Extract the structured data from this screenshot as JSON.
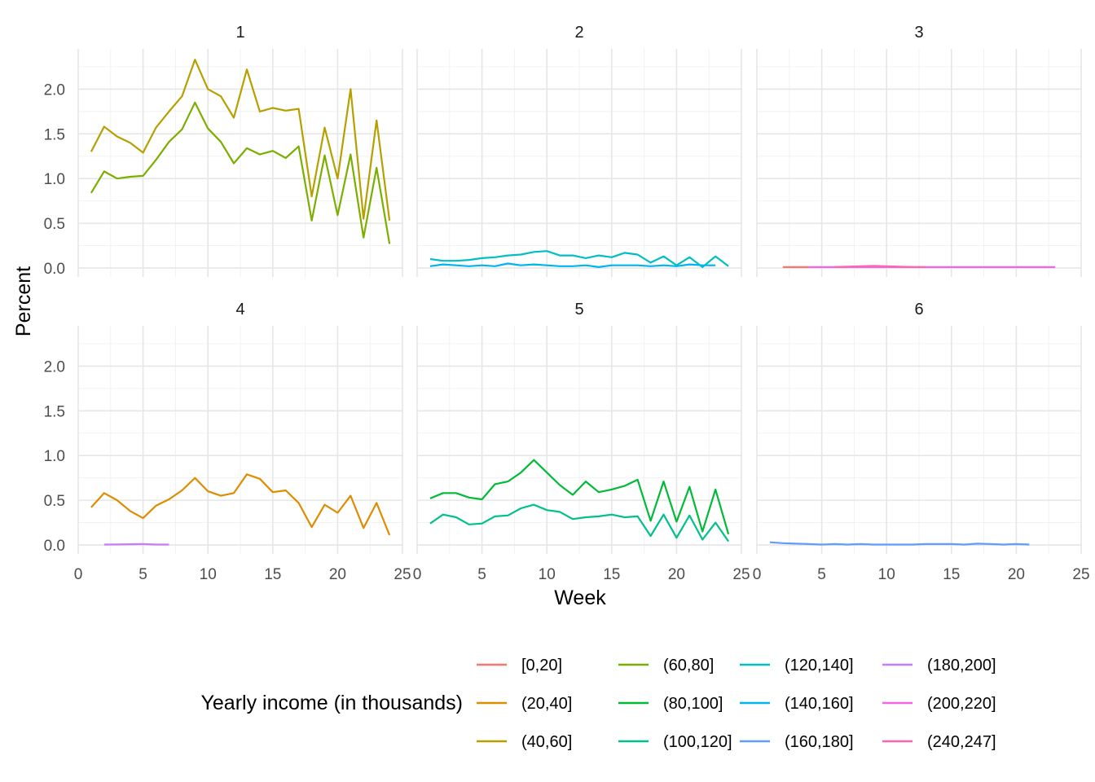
{
  "chart_data": {
    "type": "line",
    "xlabel": "Week",
    "ylabel": "Percent",
    "legend_title": "Yearly income (in thousands)",
    "legend_position": "bottom",
    "grid": true,
    "xlim": [
      0,
      25
    ],
    "ylim": [
      0,
      2.4
    ],
    "x_ticks": [
      "0",
      "5",
      "10",
      "15",
      "20",
      "25"
    ],
    "y_ticks": [
      "0.0",
      "0.5",
      "1.0",
      "1.5",
      "2.0"
    ],
    "legend": [
      {
        "label": "[0,20]",
        "color": "#F8766D"
      },
      {
        "label": "(20,40]",
        "color": "#DE8C00"
      },
      {
        "label": "(40,60]",
        "color": "#B79F00"
      },
      {
        "label": "(60,80]",
        "color": "#7CAE00"
      },
      {
        "label": "(80,100]",
        "color": "#00BA38"
      },
      {
        "label": "(100,120]",
        "color": "#00C08B"
      },
      {
        "label": "(120,140]",
        "color": "#00BFC4"
      },
      {
        "label": "(140,160]",
        "color": "#00B4F0"
      },
      {
        "label": "(160,180]",
        "color": "#619CFF"
      },
      {
        "label": "(180,200]",
        "color": "#C77CFF"
      },
      {
        "label": "(200,220]",
        "color": "#F564E3"
      },
      {
        "label": "(240,247]",
        "color": "#FF64B0"
      }
    ],
    "panels": [
      {
        "label": "1",
        "series": [
          {
            "name": "(40,60]",
            "color": "#B79F00",
            "x": [
              1,
              2,
              3,
              4,
              5,
              6,
              7,
              8,
              9,
              10,
              11,
              12,
              13,
              14,
              15,
              16,
              17,
              18,
              19,
              20,
              21,
              22,
              23,
              24
            ],
            "y": [
              1.3,
              1.58,
              1.47,
              1.4,
              1.29,
              1.57,
              1.75,
              1.92,
              2.33,
              2.0,
              1.92,
              1.68,
              2.22,
              1.75,
              1.79,
              1.76,
              1.78,
              0.8,
              1.57,
              1.0,
              2.0,
              0.55,
              1.65,
              0.53
            ]
          },
          {
            "name": "(60,80]",
            "color": "#7CAE00",
            "x": [
              1,
              2,
              3,
              4,
              5,
              6,
              7,
              8,
              9,
              10,
              11,
              12,
              13,
              14,
              15,
              16,
              17,
              18,
              19,
              20,
              21,
              22,
              23,
              24
            ],
            "y": [
              0.84,
              1.08,
              1.0,
              1.02,
              1.03,
              1.21,
              1.41,
              1.55,
              1.85,
              1.56,
              1.41,
              1.17,
              1.34,
              1.27,
              1.31,
              1.23,
              1.36,
              0.53,
              1.26,
              0.59,
              1.27,
              0.34,
              1.12,
              0.27
            ]
          }
        ]
      },
      {
        "label": "2",
        "series": [
          {
            "name": "(120,140]",
            "color": "#00BFC4",
            "x": [
              1,
              2,
              3,
              4,
              5,
              6,
              7,
              8,
              9,
              10,
              11,
              12,
              13,
              14,
              15,
              16,
              17,
              18,
              19,
              20,
              21,
              22,
              23,
              24
            ],
            "y": [
              0.1,
              0.08,
              0.08,
              0.09,
              0.11,
              0.12,
              0.14,
              0.15,
              0.18,
              0.19,
              0.14,
              0.14,
              0.11,
              0.14,
              0.12,
              0.17,
              0.15,
              0.06,
              0.13,
              0.03,
              0.12,
              0.01,
              0.13,
              0.02
            ]
          },
          {
            "name": "(140,160]",
            "color": "#00B4F0",
            "x": [
              1,
              2,
              3,
              4,
              5,
              6,
              7,
              8,
              9,
              10,
              11,
              12,
              13,
              14,
              15,
              16,
              17,
              18,
              19,
              20,
              21,
              22,
              23
            ],
            "y": [
              0.02,
              0.04,
              0.03,
              0.02,
              0.03,
              0.02,
              0.05,
              0.03,
              0.04,
              0.03,
              0.02,
              0.02,
              0.03,
              0.01,
              0.03,
              0.03,
              0.03,
              0.02,
              0.03,
              0.02,
              0.04,
              0.03,
              0.03
            ]
          }
        ]
      },
      {
        "label": "3",
        "series": [
          {
            "name": "[0,20]",
            "color": "#F8766D",
            "x": [
              2,
              3,
              4
            ],
            "y": [
              0.01,
              0.01,
              0.01
            ]
          },
          {
            "name": "(200,220]",
            "color": "#F564E3",
            "x": [
              4,
              5,
              6,
              7,
              8,
              9,
              10,
              11,
              12,
              13,
              14,
              15,
              16,
              17,
              18,
              19,
              20,
              21,
              22,
              23
            ],
            "y": [
              0.01,
              0.01,
              0.01,
              0.01,
              0.01,
              0.01,
              0.01,
              0.01,
              0.01,
              0.01,
              0.01,
              0.01,
              0.01,
              0.01,
              0.01,
              0.01,
              0.01,
              0.01,
              0.01,
              0.01
            ]
          },
          {
            "name": "(240,247]",
            "color": "#FF64B0",
            "x": [
              6,
              7,
              8,
              9,
              10,
              11,
              12,
              13
            ],
            "y": [
              0.01,
              0.015,
              0.02,
              0.025,
              0.02,
              0.015,
              0.01,
              0.01
            ]
          }
        ]
      },
      {
        "label": "4",
        "series": [
          {
            "name": "(20,40]",
            "color": "#DE8C00",
            "x": [
              1,
              2,
              3,
              4,
              5,
              6,
              7,
              8,
              9,
              10,
              11,
              12,
              13,
              14,
              15,
              16,
              17,
              18,
              19,
              20,
              21,
              22,
              23,
              24
            ],
            "y": [
              0.42,
              0.58,
              0.5,
              0.38,
              0.3,
              0.44,
              0.51,
              0.61,
              0.75,
              0.6,
              0.55,
              0.58,
              0.79,
              0.74,
              0.59,
              0.61,
              0.47,
              0.2,
              0.45,
              0.36,
              0.55,
              0.19,
              0.47,
              0.11
            ]
          },
          {
            "name": "(180,200]",
            "color": "#C77CFF",
            "x": [
              2,
              3,
              4,
              5,
              6,
              7
            ],
            "y": [
              0.005,
              0.006,
              0.008,
              0.01,
              0.005,
              0.005
            ]
          }
        ]
      },
      {
        "label": "5",
        "series": [
          {
            "name": "(80,100]",
            "color": "#00BA38",
            "x": [
              1,
              2,
              3,
              4,
              5,
              6,
              7,
              8,
              9,
              10,
              11,
              12,
              13,
              14,
              15,
              16,
              17,
              18,
              19,
              20,
              21,
              22,
              23,
              24
            ],
            "y": [
              0.52,
              0.58,
              0.58,
              0.53,
              0.51,
              0.68,
              0.71,
              0.81,
              0.95,
              0.81,
              0.67,
              0.56,
              0.71,
              0.59,
              0.62,
              0.66,
              0.73,
              0.27,
              0.71,
              0.26,
              0.65,
              0.15,
              0.62,
              0.12
            ]
          },
          {
            "name": "(100,120]",
            "color": "#00C08B",
            "x": [
              1,
              2,
              3,
              4,
              5,
              6,
              7,
              8,
              9,
              10,
              11,
              12,
              13,
              14,
              15,
              16,
              17,
              18,
              19,
              20,
              21,
              22,
              23,
              24
            ],
            "y": [
              0.24,
              0.34,
              0.31,
              0.23,
              0.24,
              0.32,
              0.33,
              0.41,
              0.45,
              0.39,
              0.37,
              0.29,
              0.31,
              0.32,
              0.34,
              0.31,
              0.32,
              0.1,
              0.34,
              0.08,
              0.33,
              0.06,
              0.25,
              0.04
            ]
          }
        ]
      },
      {
        "label": "6",
        "series": [
          {
            "name": "(160,180]",
            "color": "#619CFF",
            "x": [
              1,
              2,
              3,
              4,
              5,
              6,
              7,
              8,
              9,
              10,
              11,
              12,
              13,
              14,
              15,
              16,
              17,
              18,
              19,
              20,
              21
            ],
            "y": [
              0.03,
              0.02,
              0.015,
              0.01,
              0.005,
              0.01,
              0.005,
              0.01,
              0.005,
              0.005,
              0.005,
              0.005,
              0.01,
              0.01,
              0.01,
              0.005,
              0.015,
              0.01,
              0.005,
              0.01,
              0.005
            ]
          }
        ]
      }
    ]
  }
}
